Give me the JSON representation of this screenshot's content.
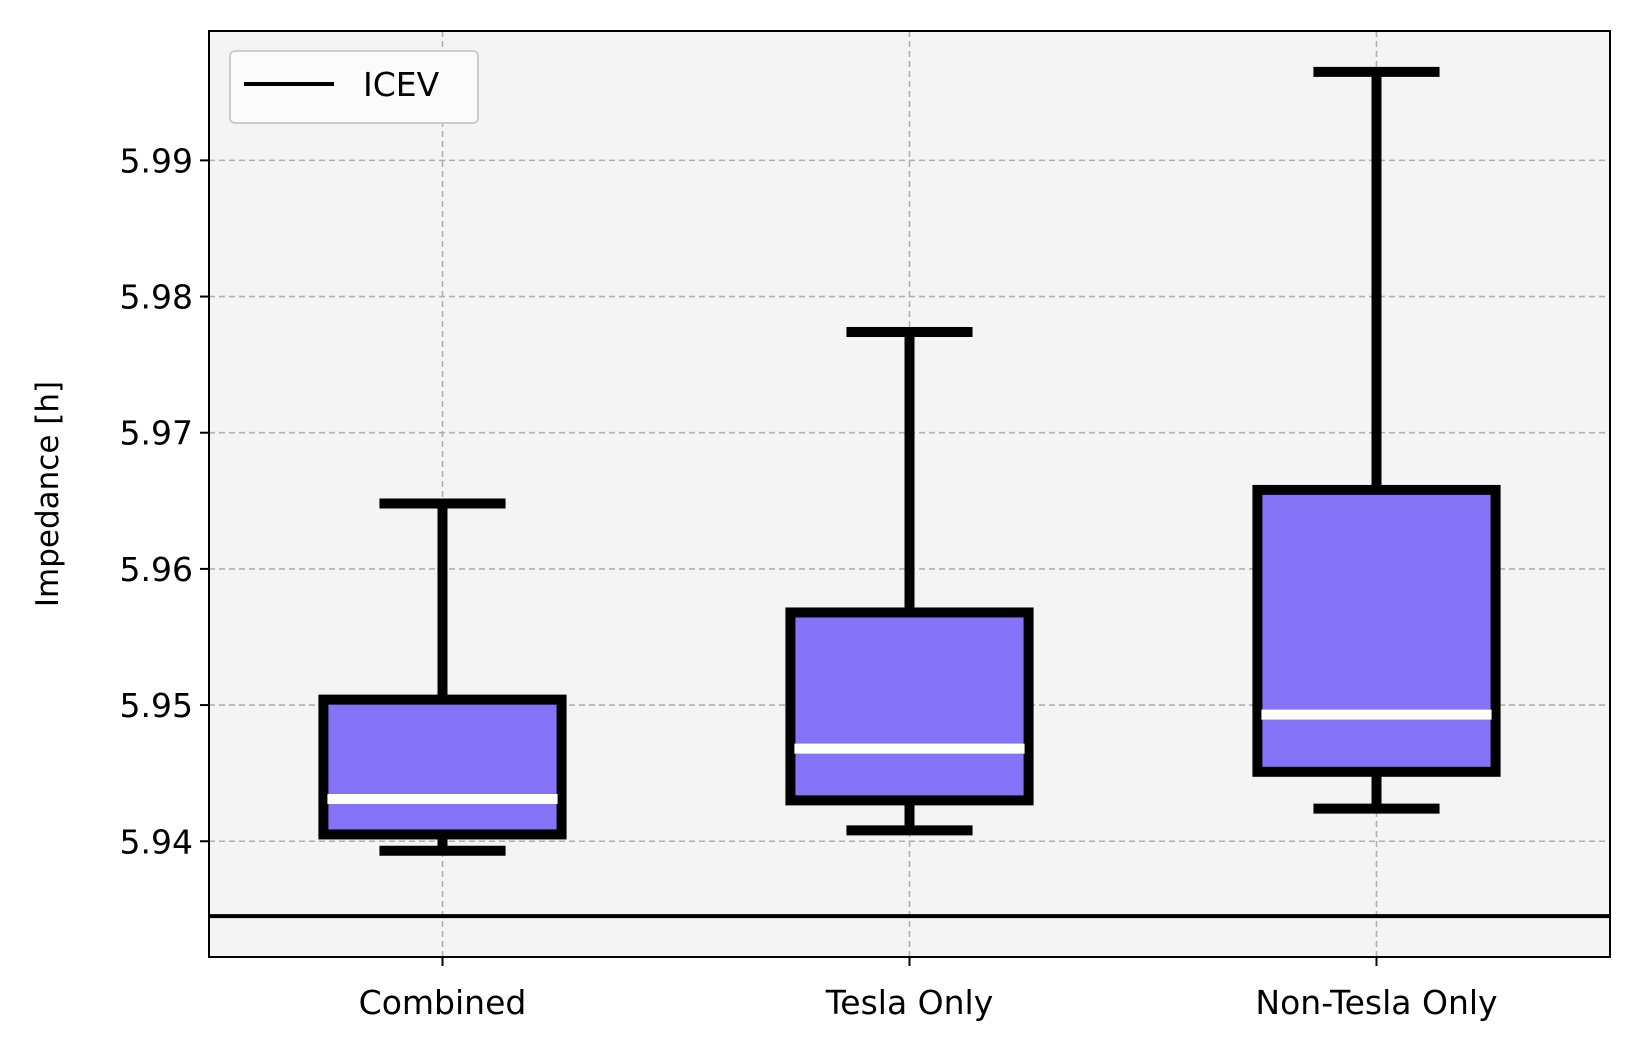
{
  "chart_data": {
    "type": "boxplot",
    "categories": [
      "Combined",
      "Tesla Only",
      "Non-Tesla Only"
    ],
    "boxes": [
      {
        "category": "Combined",
        "whisker_low": 5.9393,
        "q1": 5.9405,
        "median": 5.9431,
        "q3": 5.9504,
        "whisker_high": 5.9648
      },
      {
        "category": "Tesla Only",
        "whisker_low": 5.9408,
        "q1": 5.943,
        "median": 5.9468,
        "q3": 5.9568,
        "whisker_high": 5.9774
      },
      {
        "category": "Non-Tesla Only",
        "whisker_low": 5.9424,
        "q1": 5.9451,
        "median": 5.9493,
        "q3": 5.9658,
        "whisker_high": 5.9965
      }
    ],
    "reference_line": {
      "name": "ICEV",
      "y": 5.9345
    },
    "ylabel": "Impedance [h]",
    "xlabel": "",
    "yticks": [
      5.94,
      5.95,
      5.96,
      5.97,
      5.98,
      5.99
    ],
    "ytick_labels": [
      "5.94",
      "5.95",
      "5.96",
      "5.97",
      "5.98",
      "5.99"
    ],
    "ylim": [
      5.9315,
      5.9995
    ],
    "grid": true,
    "legend": {
      "position": "upper-left",
      "entries": [
        "ICEV"
      ]
    },
    "colors": {
      "box_fill": "#8473F7",
      "box_edge": "#000000",
      "median": "#ffffff",
      "plot_background": "#f4f4f4",
      "grid": "#b0b0b0",
      "reference_line": "#000000"
    }
  }
}
